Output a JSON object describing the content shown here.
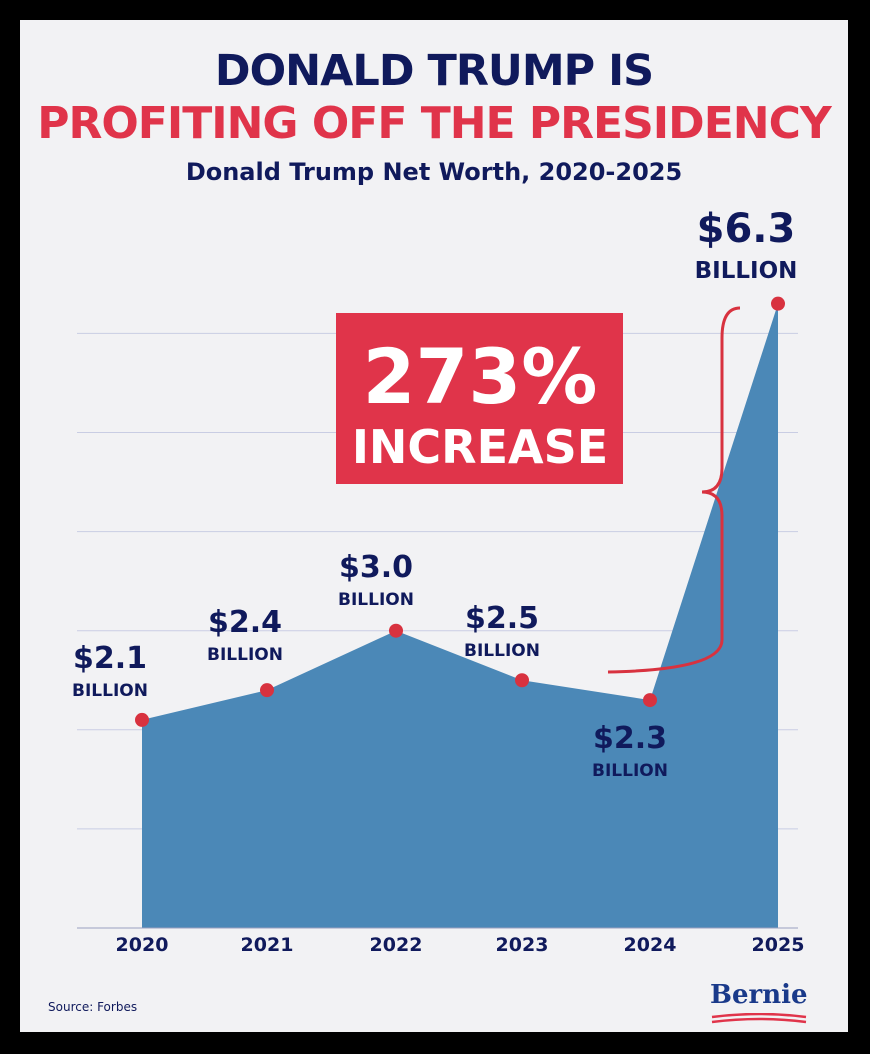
{
  "header": {
    "title_line1": "DONALD TRUMP IS",
    "title_line2": "PROFITING OFF THE PRESIDENCY",
    "subtitle": "Donald Trump Net Worth, 2020-2025"
  },
  "callout": {
    "line1": "273%",
    "line2": "INCREASE"
  },
  "footer": {
    "source": "Source: Forbes",
    "logo": "Bernie"
  },
  "colors": {
    "area": "#4b88b7",
    "point": "#d8323f",
    "navy": "#101a5c",
    "red": "#e0344a",
    "grid": "#c9cde3"
  },
  "chart_data": {
    "type": "area",
    "title": "Donald Trump Net Worth, 2020-2025",
    "categories": [
      "2020",
      "2021",
      "2022",
      "2023",
      "2024",
      "2025"
    ],
    "values": [
      2.1,
      2.4,
      3.0,
      2.5,
      2.3,
      6.3
    ],
    "value_labels": [
      "$2.1",
      "$2.4",
      "$3.0",
      "$2.5",
      "$2.3",
      "$6.3"
    ],
    "unit_labels": [
      "BILLION",
      "BILLION",
      "BILLION",
      "BILLION",
      "BILLION",
      "BILLION"
    ],
    "ylim": [
      0,
      6
    ],
    "grid": true,
    "annotation": "273% INCREASE"
  }
}
